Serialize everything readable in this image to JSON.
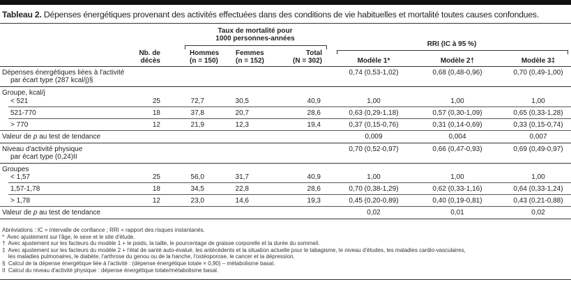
{
  "title": {
    "label": "Tableau 2.",
    "text": "Dépenses énergétiques provenant des activités effectuées dans des conditions de vie habituelles et mortalité toutes causes confondues."
  },
  "header": {
    "mort_group": [
      "Taux de mortalité pour",
      "1000 personnes-années"
    ],
    "rri_group": "RRI (IC à 95 %)",
    "nb": [
      "Nb. de",
      "décès"
    ],
    "hommes": [
      "Hommes",
      "(n = 150)"
    ],
    "femmes": [
      "Femmes",
      "(n = 152)"
    ],
    "total": [
      "Total",
      "(N = 302)"
    ],
    "m1": "Modèle 1*",
    "m2": "Modèle 2†",
    "m3": "Modèle 3‡"
  },
  "rows": [
    {
      "label": "Dépenses énergétiques liées à l'activité",
      "label2": "par écart type (287 kcal/j)§",
      "m1": "0,74 (0,53-1,02)",
      "m2": "0,68 (0,48-0,96)",
      "m3": "0,70 (0,49-1,00)"
    },
    {
      "label": "Groupe, kcal/j"
    },
    {
      "label": "< 521",
      "nb": "25",
      "h": "72,7",
      "f": "30,5",
      "t": "40,9",
      "m1": "1,00",
      "m2": "1,00",
      "m3": "1,00"
    },
    {
      "label": "521-770",
      "nb": "18",
      "h": "37,8",
      "f": "20,7",
      "t": "28,6",
      "m1": "0,63 (0,29-1,18)",
      "m2": "0,57 (0,30-1,09)",
      "m3": "0,65 (0,33-1,28)"
    },
    {
      "label": "> 770",
      "nb": "12",
      "h": "21,9",
      "f": "12,3",
      "t": "19,4",
      "m1": "0,37 (0,15-0,76)",
      "m2": "0,31 (0,14-0,69)",
      "m3": "0,33 (0,15-0,74)"
    },
    {
      "label": "Valeur de p au test de tendance",
      "m1": "0,009",
      "m2": "0,004",
      "m3": "0,007"
    },
    {
      "label": "Niveau d'activité physique",
      "label2": "par écart type (0,24)II",
      "m1": "0,70 (0,52-0,97)",
      "m2": "0,66 (0,47-0,93)",
      "m3": "0,69 (0,49-0,97)"
    },
    {
      "label": "Groupes"
    },
    {
      "label": "< 1,57",
      "nb": "25",
      "h": "56,0",
      "f": "31,7",
      "t": "40,9",
      "m1": "1,00",
      "m2": "1,00",
      "m3": "1,00"
    },
    {
      "label": "1,57-1,78",
      "nb": "18",
      "h": "34,5",
      "f": "22,8",
      "t": "28,6",
      "m1": "0,70 (0,38-1,29)",
      "m2": "0,62 (0,33-1,16)",
      "m3": "0,64 (0,33-1,24)"
    },
    {
      "label": "> 1,78",
      "nb": "12",
      "h": "23,0",
      "f": "14,6",
      "t": "19,3",
      "m1": "0,45 (0,20-0,89)",
      "m2": "0,40 (0,19-0,81)",
      "m3": "0,43 (0,21-0,88)"
    },
    {
      "label": "Valeur de p au test de tendance",
      "m1": "0,02",
      "m2": "0,01",
      "m3": "0,02"
    }
  ],
  "footnotes": [
    "Abréviations : IC = intervalle de confiance ; RRI = rapport des risques instantanés.",
    "*  Avec ajustement sur l'âge, le sexe et le site d'étude.",
    "†  Avec ajustement sur les facteurs du modèle 1 + le poids, la taille, le pourcentage de graisse corporelle et la durée du sommeil.",
    "‡  Avec ajustement sur les facteurs du modèle 2 + l'état de santé auto-évalué, les antécédents et la situation actuelle pour le tabagisme, le niveau d'études, les maladies cardio-vasculaires,",
    "    les maladies pulmonaires, le diabète, l'arthrose du genou ou de la hanche, l'ostéoporose, le cancer et la dépression.",
    "§  Calcul de la dépense énergétique liée à l'activité : (dépense énergétique totale × 0,90) – métabolisme basal.",
    "II  Calcul du niveau d'activité physique : dépense énergétique totale/métabolisme basal."
  ]
}
